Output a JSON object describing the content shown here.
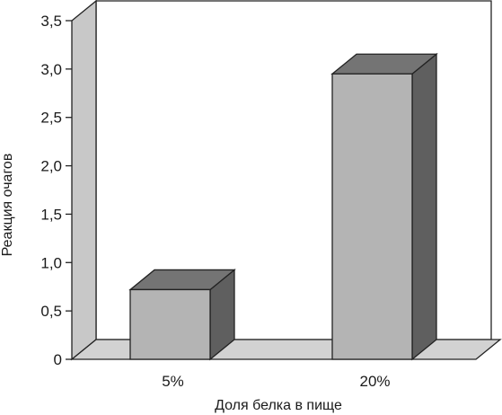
{
  "chart_data": {
    "type": "bar",
    "categories": [
      "5%",
      "20%"
    ],
    "values": [
      0.72,
      2.95
    ],
    "xlabel": "Доля белка в пище",
    "ylabel": "Реакция очагов",
    "ylim": [
      0,
      3.5
    ],
    "yticks": [
      "0",
      "0,5",
      "1,0",
      "1,5",
      "2,0",
      "2,5",
      "3,0",
      "3,5"
    ],
    "grid": false,
    "style": "3d-bar",
    "colors": {
      "bar_front": "#b4b4b4",
      "bar_side": "#5f5f5f",
      "bar_top": "#747474",
      "wall": "#ffffff",
      "floor": "#d2d2d2",
      "side_wall": "#c8c8c8"
    }
  }
}
